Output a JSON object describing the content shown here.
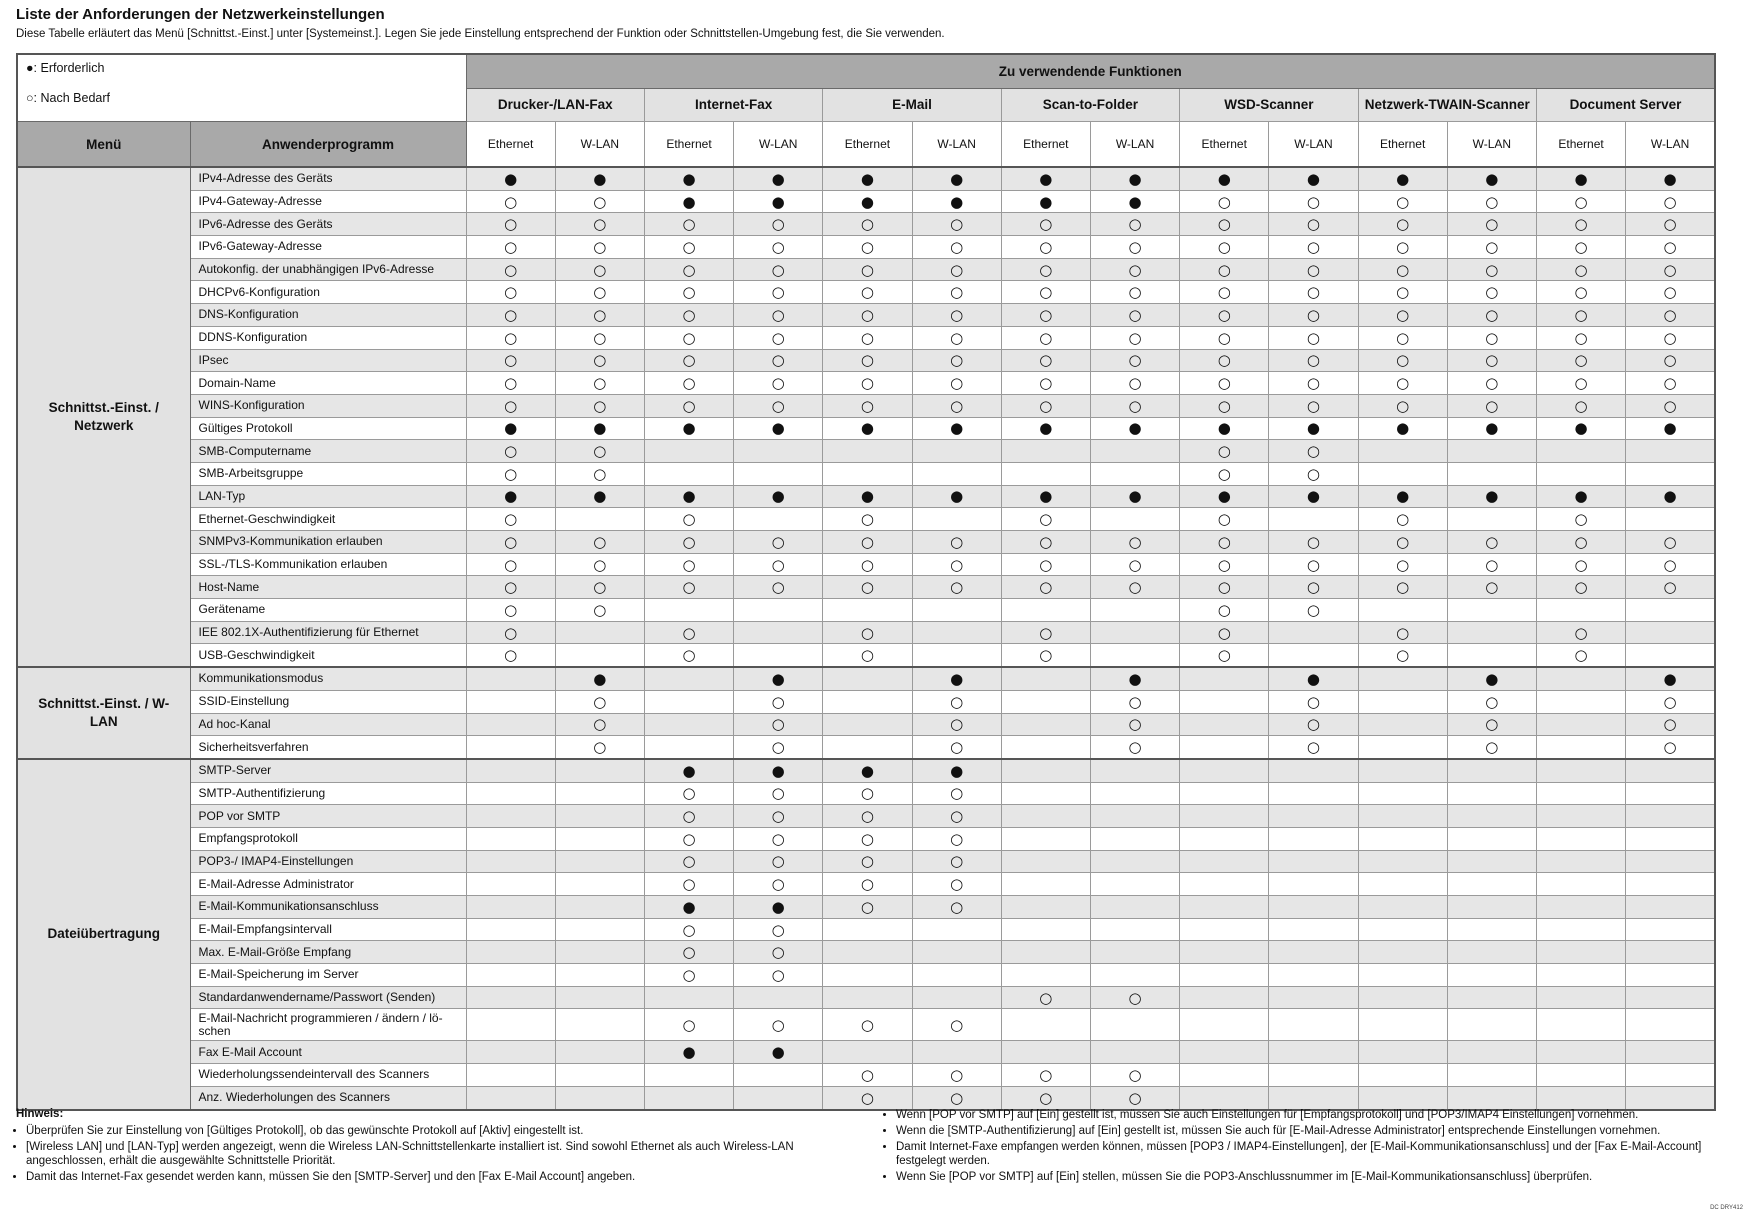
{
  "header": {
    "title": "Liste der Anforderungen der Netzwerkeinstellungen",
    "description": "Diese Tabelle erläutert das Menü [Schnittst.-Einst.] unter [Systemeinst.]. Legen Sie jede Einstellung entsprechend der Funktion oder Schnittstellen-Umgebung fest, die Sie verwenden."
  },
  "legend": [
    "●: Erforderlich",
    "○: Nach Bedarf"
  ],
  "table": {
    "super_header": "Zu verwendende Funktionen",
    "col_headers": [
      "Menü",
      "Anwenderprogramm"
    ],
    "functions": [
      "Drucker-/LAN-Fax",
      "Internet-Fax",
      "E-Mail",
      "Scan-to-Folder",
      "WSD-Scanner",
      "Netzwerk-TWAIN-Scanner",
      "Document Server"
    ],
    "interfaces": [
      "Ethernet",
      "W-LAN"
    ],
    "groups": [
      {
        "menu": "Schnittst.-Einst. / Netzwerk",
        "rows": [
          {
            "label": "IPv4-Adresse des Geräts",
            "cells": [
              "●",
              "●",
              "●",
              "●",
              "●",
              "●",
              "●",
              "●",
              "●",
              "●",
              "●",
              "●",
              "●",
              "●"
            ]
          },
          {
            "label": "IPv4-Gateway-Adresse",
            "cells": [
              "○",
              "○",
              "●",
              "●",
              "●",
              "●",
              "●",
              "●",
              "○",
              "○",
              "○",
              "○",
              "○",
              "○"
            ]
          },
          {
            "label": "IPv6-Adresse des Geräts",
            "cells": [
              "○",
              "○",
              "○",
              "○",
              "○",
              "○",
              "○",
              "○",
              "○",
              "○",
              "○",
              "○",
              "○",
              "○"
            ]
          },
          {
            "label": "IPv6-Gateway-Adresse",
            "cells": [
              "○",
              "○",
              "○",
              "○",
              "○",
              "○",
              "○",
              "○",
              "○",
              "○",
              "○",
              "○",
              "○",
              "○"
            ]
          },
          {
            "label": "Autokonfig. der unabhängigen IPv6-Adresse",
            "cells": [
              "○",
              "○",
              "○",
              "○",
              "○",
              "○",
              "○",
              "○",
              "○",
              "○",
              "○",
              "○",
              "○",
              "○"
            ]
          },
          {
            "label": "DHCPv6-Konfiguration",
            "cells": [
              "○",
              "○",
              "○",
              "○",
              "○",
              "○",
              "○",
              "○",
              "○",
              "○",
              "○",
              "○",
              "○",
              "○"
            ]
          },
          {
            "label": "DNS-Konfiguration",
            "cells": [
              "○",
              "○",
              "○",
              "○",
              "○",
              "○",
              "○",
              "○",
              "○",
              "○",
              "○",
              "○",
              "○",
              "○"
            ]
          },
          {
            "label": "DDNS-Konfiguration",
            "cells": [
              "○",
              "○",
              "○",
              "○",
              "○",
              "○",
              "○",
              "○",
              "○",
              "○",
              "○",
              "○",
              "○",
              "○"
            ]
          },
          {
            "label": "IPsec",
            "cells": [
              "○",
              "○",
              "○",
              "○",
              "○",
              "○",
              "○",
              "○",
              "○",
              "○",
              "○",
              "○",
              "○",
              "○"
            ]
          },
          {
            "label": "Domain-Name",
            "cells": [
              "○",
              "○",
              "○",
              "○",
              "○",
              "○",
              "○",
              "○",
              "○",
              "○",
              "○",
              "○",
              "○",
              "○"
            ]
          },
          {
            "label": "WINS-Konfiguration",
            "cells": [
              "○",
              "○",
              "○",
              "○",
              "○",
              "○",
              "○",
              "○",
              "○",
              "○",
              "○",
              "○",
              "○",
              "○"
            ]
          },
          {
            "label": "Gültiges Protokoll",
            "cells": [
              "●",
              "●",
              "●",
              "●",
              "●",
              "●",
              "●",
              "●",
              "●",
              "●",
              "●",
              "●",
              "●",
              "●"
            ]
          },
          {
            "label": "SMB-Computername",
            "cells": [
              "○",
              "○",
              null,
              null,
              null,
              null,
              null,
              null,
              "○",
              "○",
              null,
              null,
              null,
              null
            ]
          },
          {
            "label": "SMB-Arbeitsgruppe",
            "cells": [
              "○",
              "○",
              null,
              null,
              null,
              null,
              null,
              null,
              "○",
              "○",
              null,
              null,
              null,
              null
            ]
          },
          {
            "label": "LAN-Typ",
            "cells": [
              "●",
              "●",
              "●",
              "●",
              "●",
              "●",
              "●",
              "●",
              "●",
              "●",
              "●",
              "●",
              "●",
              "●"
            ]
          },
          {
            "label": "Ethernet-Geschwindigkeit",
            "cells": [
              "○",
              null,
              "○",
              null,
              "○",
              null,
              "○",
              null,
              "○",
              null,
              "○",
              null,
              "○",
              null
            ]
          },
          {
            "label": "SNMPv3-Kommunikation erlauben",
            "cells": [
              "○",
              "○",
              "○",
              "○",
              "○",
              "○",
              "○",
              "○",
              "○",
              "○",
              "○",
              "○",
              "○",
              "○"
            ]
          },
          {
            "label": "SSL-/TLS-Kommunikation erlauben",
            "cells": [
              "○",
              "○",
              "○",
              "○",
              "○",
              "○",
              "○",
              "○",
              "○",
              "○",
              "○",
              "○",
              "○",
              "○"
            ]
          },
          {
            "label": "Host-Name",
            "cells": [
              "○",
              "○",
              "○",
              "○",
              "○",
              "○",
              "○",
              "○",
              "○",
              "○",
              "○",
              "○",
              "○",
              "○"
            ]
          },
          {
            "label": "Gerätename",
            "cells": [
              "○",
              "○",
              null,
              null,
              null,
              null,
              null,
              null,
              "○",
              "○",
              null,
              null,
              null,
              null
            ]
          },
          {
            "label": "IEE 802.1X-Authentifizierung für Ethernet",
            "cells": [
              "○",
              null,
              "○",
              null,
              "○",
              null,
              "○",
              null,
              "○",
              null,
              "○",
              null,
              "○",
              null
            ]
          },
          {
            "label": "USB-Geschwindigkeit",
            "cells": [
              "○",
              null,
              "○",
              null,
              "○",
              null,
              "○",
              null,
              "○",
              null,
              "○",
              null,
              "○",
              null
            ]
          }
        ]
      },
      {
        "menu": "Schnittst.-Einst. / W-LAN",
        "rows": [
          {
            "label": "Kommunikationsmodus",
            "cells": [
              null,
              "●",
              null,
              "●",
              null,
              "●",
              null,
              "●",
              null,
              "●",
              null,
              "●",
              null,
              "●"
            ]
          },
          {
            "label": "SSID-Einstellung",
            "cells": [
              null,
              "○",
              null,
              "○",
              null,
              "○",
              null,
              "○",
              null,
              "○",
              null,
              "○",
              null,
              "○"
            ]
          },
          {
            "label": "Ad hoc-Kanal",
            "cells": [
              null,
              "○",
              null,
              "○",
              null,
              "○",
              null,
              "○",
              null,
              "○",
              null,
              "○",
              null,
              "○"
            ]
          },
          {
            "label": "Sicherheitsverfahren",
            "cells": [
              null,
              "○",
              null,
              "○",
              null,
              "○",
              null,
              "○",
              null,
              "○",
              null,
              "○",
              null,
              "○"
            ]
          }
        ]
      },
      {
        "menu": "Dateiübertragung",
        "rows": [
          {
            "label": "SMTP-Server",
            "cells": [
              null,
              null,
              "●",
              "●",
              "●",
              "●",
              null,
              null,
              null,
              null,
              null,
              null,
              null,
              null
            ]
          },
          {
            "label": "SMTP-Authentifizierung",
            "cells": [
              null,
              null,
              "○",
              "○",
              "○",
              "○",
              null,
              null,
              null,
              null,
              null,
              null,
              null,
              null
            ]
          },
          {
            "label": "POP vor SMTP",
            "cells": [
              null,
              null,
              "○",
              "○",
              "○",
              "○",
              null,
              null,
              null,
              null,
              null,
              null,
              null,
              null
            ]
          },
          {
            "label": "Empfangsprotokoll",
            "cells": [
              null,
              null,
              "○",
              "○",
              "○",
              "○",
              null,
              null,
              null,
              null,
              null,
              null,
              null,
              null
            ]
          },
          {
            "label": "POP3-/ IMAP4-Einstellungen",
            "cells": [
              null,
              null,
              "○",
              "○",
              "○",
              "○",
              null,
              null,
              null,
              null,
              null,
              null,
              null,
              null
            ]
          },
          {
            "label": "E-Mail-Adresse Administrator",
            "cells": [
              null,
              null,
              "○",
              "○",
              "○",
              "○",
              null,
              null,
              null,
              null,
              null,
              null,
              null,
              null
            ]
          },
          {
            "label": "E-Mail-Kommunikationsanschluss",
            "cells": [
              null,
              null,
              "●",
              "●",
              "○",
              "○",
              null,
              null,
              null,
              null,
              null,
              null,
              null,
              null
            ]
          },
          {
            "label": "E-Mail-Empfangsintervall",
            "cells": [
              null,
              null,
              "○",
              "○",
              null,
              null,
              null,
              null,
              null,
              null,
              null,
              null,
              null,
              null
            ]
          },
          {
            "label": "Max. E-Mail-Größe Empfang",
            "cells": [
              null,
              null,
              "○",
              "○",
              null,
              null,
              null,
              null,
              null,
              null,
              null,
              null,
              null,
              null
            ]
          },
          {
            "label": "E-Mail-Speicherung im Server",
            "cells": [
              null,
              null,
              "○",
              "○",
              null,
              null,
              null,
              null,
              null,
              null,
              null,
              null,
              null,
              null
            ]
          },
          {
            "label": "Standardanwendername/Passwort (Senden)",
            "cells": [
              null,
              null,
              null,
              null,
              null,
              null,
              "○",
              "○",
              null,
              null,
              null,
              null,
              null,
              null
            ]
          },
          {
            "label": "E-Mail-Nachricht programmieren / ändern / lö-schen",
            "cells": [
              null,
              null,
              "○",
              "○",
              "○",
              "○",
              null,
              null,
              null,
              null,
              null,
              null,
              null,
              null
            ]
          },
          {
            "label": "Fax E-Mail Account",
            "cells": [
              null,
              null,
              "●",
              "●",
              null,
              null,
              null,
              null,
              null,
              null,
              null,
              null,
              null,
              null
            ]
          },
          {
            "label": "Wiederholungssendeintervall des Scanners",
            "cells": [
              null,
              null,
              null,
              null,
              "○",
              "○",
              "○",
              "○",
              null,
              null,
              null,
              null,
              null,
              null
            ]
          },
          {
            "label": "Anz. Wiederholungen des Scanners",
            "cells": [
              null,
              null,
              null,
              null,
              "○",
              "○",
              "○",
              "○",
              null,
              null,
              null,
              null,
              null,
              null
            ]
          }
        ]
      }
    ]
  },
  "notes": {
    "title": "Hinweis:",
    "left": [
      "Überprüfen Sie zur Einstellung von [Gültiges Protokoll], ob das gewünschte Protokoll auf [Aktiv] eingestellt ist.",
      "[Wireless LAN] und [LAN-Typ] werden angezeigt, wenn die Wireless LAN-Schnittstellenkarte installiert ist. Sind sowohl Ethernet als auch Wireless-LAN angeschlossen, erhält die ausgewählte Schnittstelle Priorität.",
      "Damit das Internet-Fax gesendet werden kann, müssen Sie den [SMTP-Server] und den [Fax E-Mail Account] angeben."
    ],
    "right": [
      "Wenn [POP vor SMTP] auf [Ein] gestellt ist, müssen Sie auch Einstellungen für [Empfangsprotokoll] und [POP3/IMAP4 Einstellungen] vornehmen.",
      "Wenn die [SMTP-Authentifizierung] auf [Ein] gestellt ist, müssen Sie auch für [E-Mail-Adresse Administrator] entsprechende Einstellungen vornehmen.",
      "Damit Internet-Faxe empfangen werden können, müssen [POP3 / IMAP4-Einstellungen], der [E-Mail-Kommunikationsanschluss] und der [Fax E-Mail-Account] festgelegt werden.",
      "Wenn Sie [POP vor SMTP] auf [Ein] stellen, müssen Sie die POP3-Anschlussnummer im [E-Mail-Kommunikationsanschluss] überprüfen."
    ]
  },
  "footer_code": "DC DRY412"
}
